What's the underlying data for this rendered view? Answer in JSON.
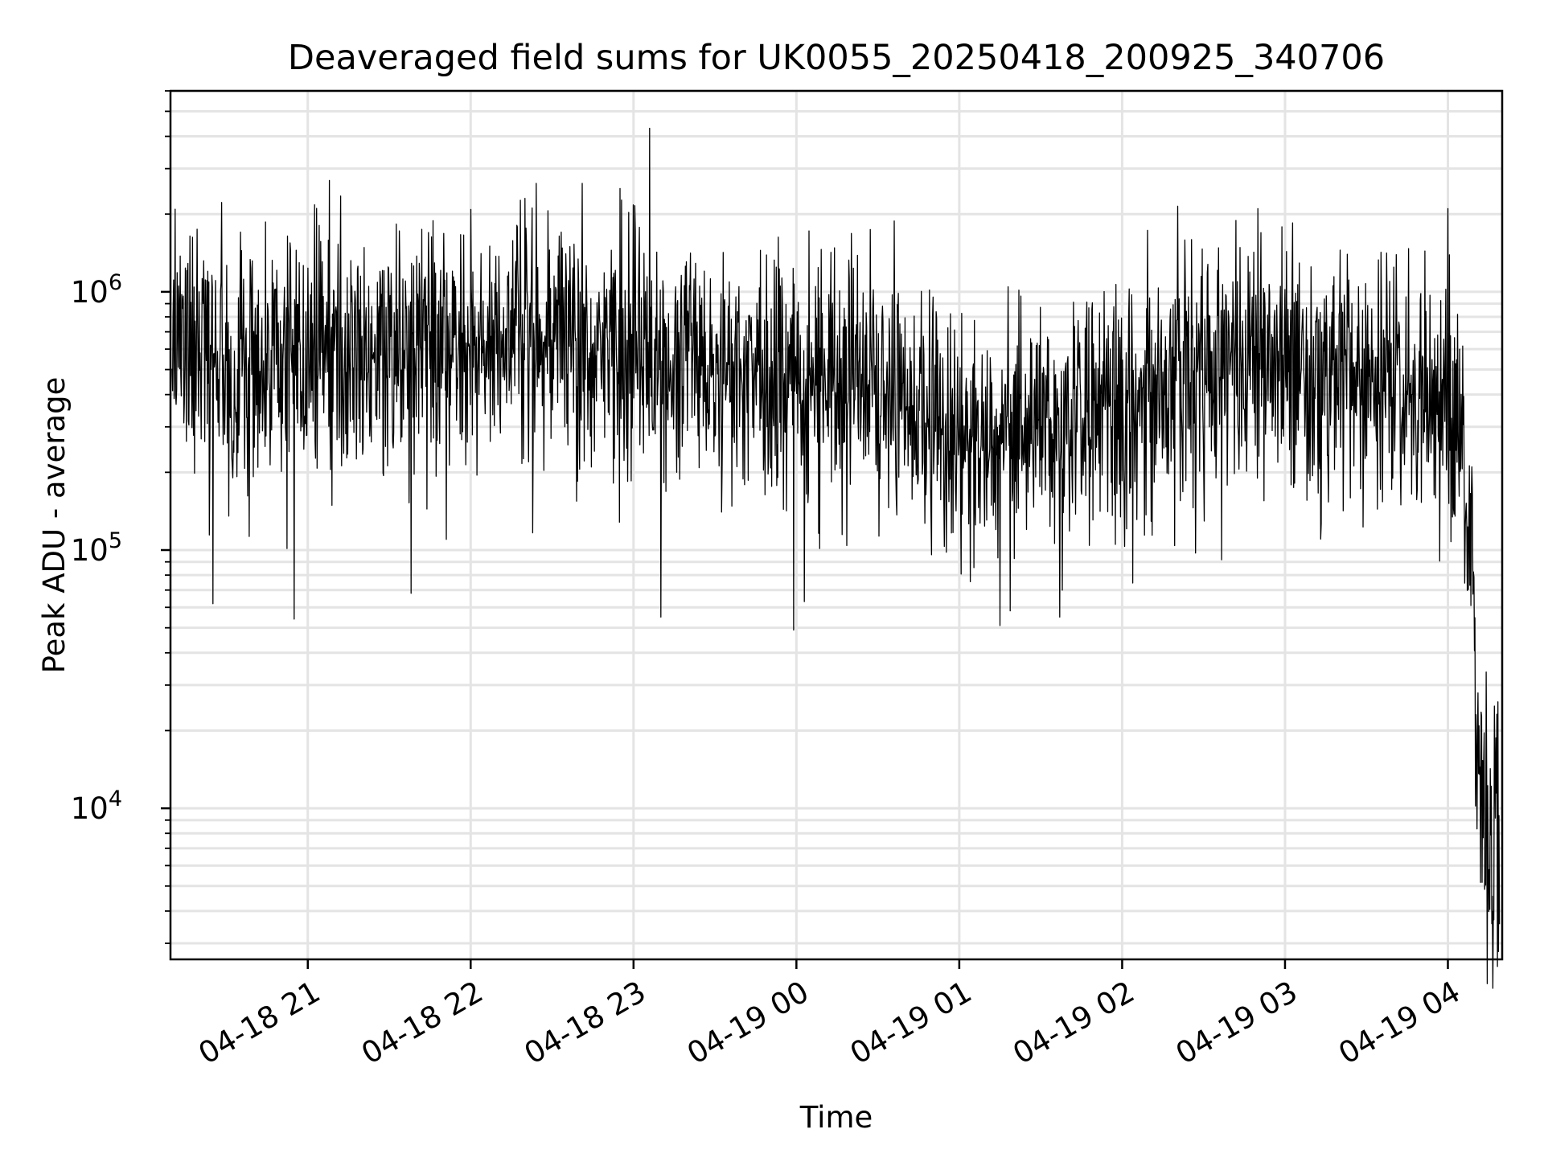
{
  "chart_data": {
    "type": "line",
    "title": "Deaveraged field sums for UK0055_20250418_200925_340706",
    "xlabel": "Time",
    "ylabel": "Peak ADU - average",
    "yscale": "log",
    "xlim": [
      "2025-04-18 20:09:25",
      "2025-04-19 04:20:00"
    ],
    "ylim": [
      2600,
      6000000
    ],
    "x_ticks": [
      {
        "value": "2025-04-18 21:00",
        "label": "04-18 21"
      },
      {
        "value": "2025-04-18 22:00",
        "label": "04-18 22"
      },
      {
        "value": "2025-04-18 23:00",
        "label": "04-18 23"
      },
      {
        "value": "2025-04-19 00:00",
        "label": "04-19 00"
      },
      {
        "value": "2025-04-19 01:00",
        "label": "04-19 01"
      },
      {
        "value": "2025-04-19 02:00",
        "label": "04-19 02"
      },
      {
        "value": "2025-04-19 03:00",
        "label": "04-19 03"
      },
      {
        "value": "2025-04-19 04:00",
        "label": "04-19 04"
      }
    ],
    "y_ticks": [
      {
        "value": 10000,
        "base": "10",
        "exp": "4"
      },
      {
        "value": 100000,
        "base": "10",
        "exp": "5"
      },
      {
        "value": 1000000,
        "base": "10",
        "exp": "6"
      }
    ],
    "grid": true,
    "line_color": "#000000",
    "grid_color": "#e4e4e4",
    "series": [
      {
        "color": "#000000",
        "trend": [
          {
            "x": "2025-04-18 20:10",
            "y": 600000
          },
          {
            "x": "2025-04-18 20:30",
            "y": 520000
          },
          {
            "x": "2025-04-18 21:00",
            "y": 550000
          },
          {
            "x": "2025-04-18 21:30",
            "y": 600000
          },
          {
            "x": "2025-04-18 22:00",
            "y": 620000
          },
          {
            "x": "2025-04-18 22:30",
            "y": 720000
          },
          {
            "x": "2025-04-18 23:00",
            "y": 600000
          },
          {
            "x": "2025-04-18 23:30",
            "y": 450000
          },
          {
            "x": "2025-04-19 00:00",
            "y": 480000
          },
          {
            "x": "2025-04-19 00:40",
            "y": 420000
          },
          {
            "x": "2025-04-19 01:00",
            "y": 250000
          },
          {
            "x": "2025-04-19 01:30",
            "y": 280000
          },
          {
            "x": "2025-04-19 02:00",
            "y": 350000
          },
          {
            "x": "2025-04-19 02:30",
            "y": 520000
          },
          {
            "x": "2025-04-19 03:00",
            "y": 550000
          },
          {
            "x": "2025-04-19 03:30",
            "y": 500000
          },
          {
            "x": "2025-04-19 04:05",
            "y": 300000
          },
          {
            "x": "2025-04-19 04:09",
            "y": 100000
          },
          {
            "x": "2025-04-19 04:11",
            "y": 20000
          },
          {
            "x": "2025-04-19 04:14",
            "y": 10000
          },
          {
            "x": "2025-04-19 04:19",
            "y": 8000
          }
        ],
        "peaks": [
          {
            "x": "2025-04-18 21:08",
            "y": 2700000
          },
          {
            "x": "2025-04-18 22:20",
            "y": 2300000
          },
          {
            "x": "2025-04-18 23:06",
            "y": 4300000
          },
          {
            "x": "2025-04-19 02:50",
            "y": 2100000
          },
          {
            "x": "2025-04-19 04:00",
            "y": 2100000
          }
        ],
        "troughs": [
          {
            "x": "2025-04-18 20:25",
            "y": 62000
          },
          {
            "x": "2025-04-18 20:55",
            "y": 54000
          },
          {
            "x": "2025-04-18 21:38",
            "y": 68000
          },
          {
            "x": "2025-04-18 23:10",
            "y": 55000
          },
          {
            "x": "2025-04-18 23:59",
            "y": 49000
          },
          {
            "x": "2025-04-19 01:15",
            "y": 51000
          },
          {
            "x": "2025-04-19 01:37",
            "y": 55000
          },
          {
            "x": "2025-04-19 04:17",
            "y": 3700
          }
        ]
      }
    ]
  }
}
